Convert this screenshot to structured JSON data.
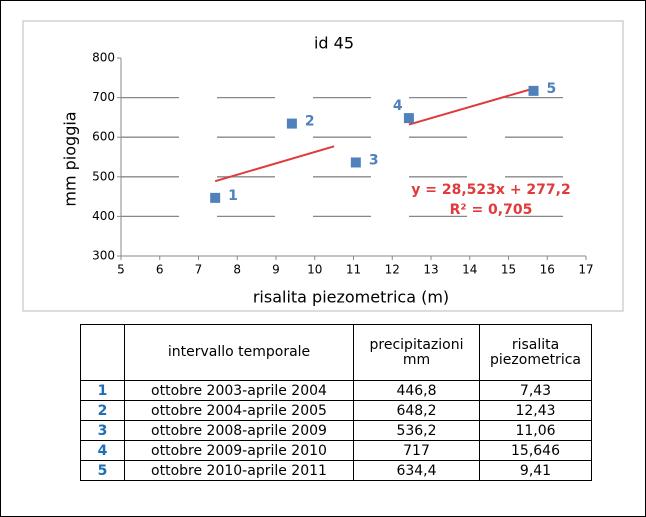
{
  "chart_data": {
    "type": "scatter",
    "title": "id 45",
    "xlabel": "risalita piezometrica (m)",
    "ylabel": "mm pioggia",
    "xlim": [
      5,
      17
    ],
    "xticks": [
      5,
      6,
      7,
      8,
      9,
      10,
      11,
      12,
      13,
      14,
      15,
      16,
      17
    ],
    "ylim": [
      300,
      800
    ],
    "yticks": [
      300,
      400,
      500,
      600,
      700,
      800
    ],
    "grid": true,
    "points": {
      "color": "#4f81bd",
      "x": [
        7.43,
        9.41,
        11.06,
        12.43,
        15.646
      ],
      "values": [
        446.8,
        634.4,
        536.2,
        648.2,
        717
      ],
      "labels": [
        "1",
        "2",
        "3",
        "4",
        "5"
      ]
    },
    "trendline": {
      "color": "#e03a3a",
      "x": [
        7.43,
        10.5,
        null,
        12.43,
        15.646
      ],
      "values": [
        489,
        577,
        null,
        632,
        723
      ]
    },
    "annotations": [
      "y = 28,523x + 277,2",
      "R² = 0,705"
    ]
  },
  "table": {
    "header": [
      "intervallo temporale",
      "precipitazioni mm",
      "risalita piezometrica"
    ],
    "rows": [
      [
        "1",
        "ottobre 2003-aprile 2004",
        "446,8",
        "7,43"
      ],
      [
        "2",
        "ottobre 2004-aprile 2005",
        "648,2",
        "12,43"
      ],
      [
        "3",
        "ottobre 2008-aprile 2009",
        "536,2",
        "11,06"
      ],
      [
        "4",
        "ottobre 2009-aprile 2010",
        "717",
        "15,646"
      ],
      [
        "5",
        "ottobre 2010-aprile 2011",
        "634,4",
        "9,41"
      ]
    ]
  }
}
